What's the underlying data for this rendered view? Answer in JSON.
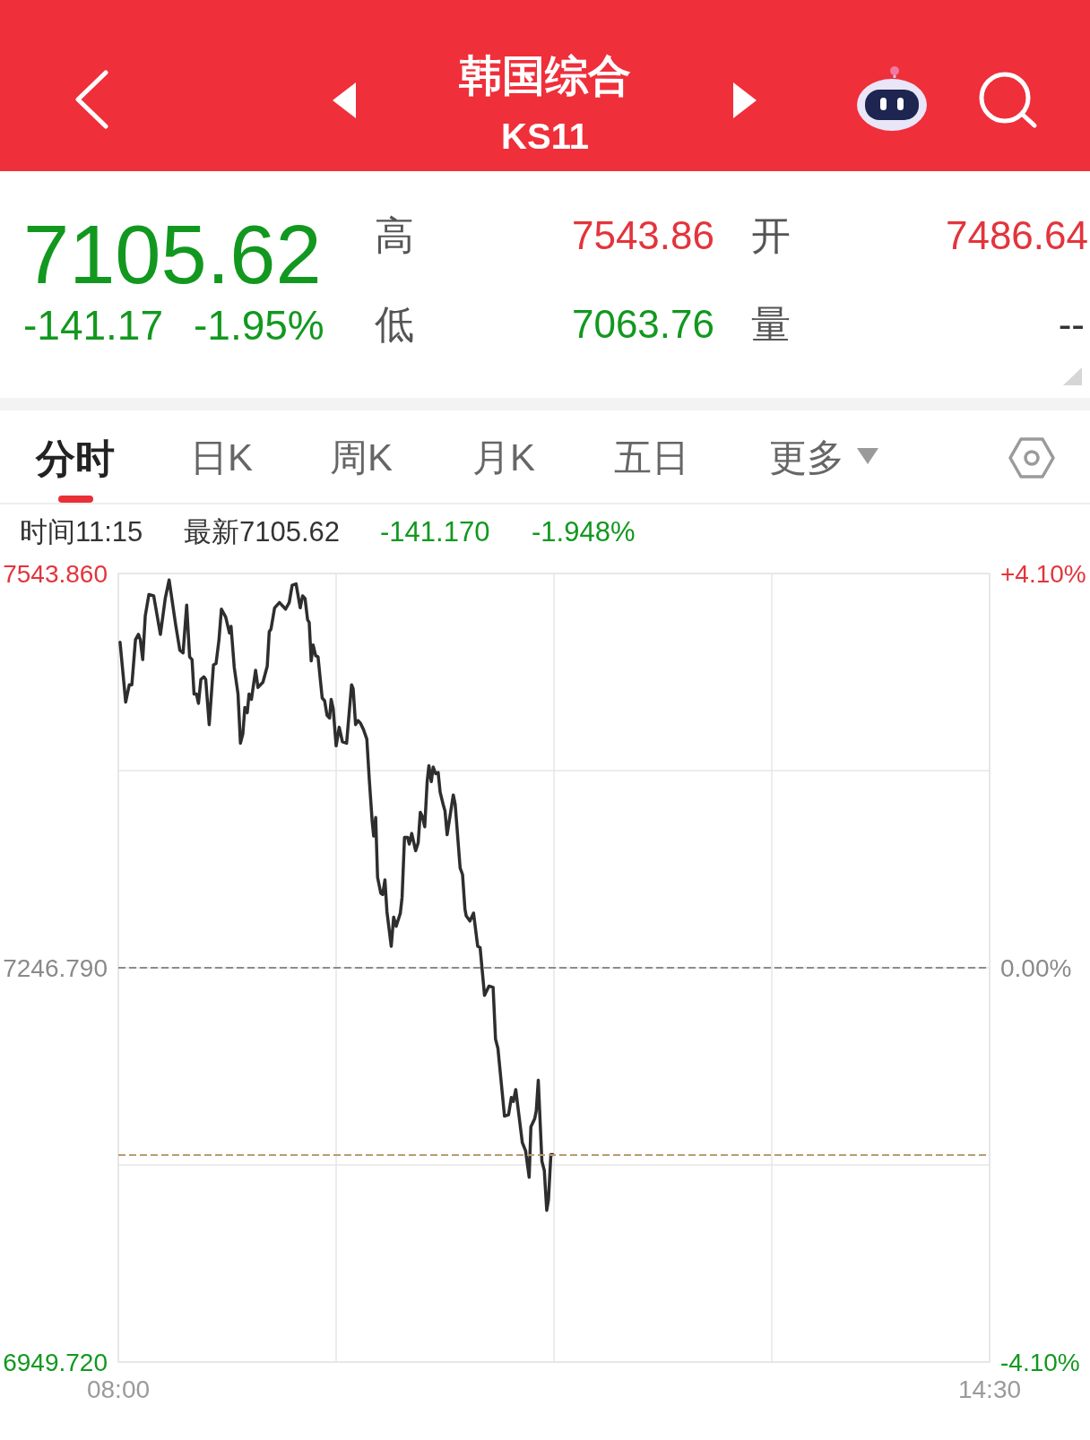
{
  "chart_data": {
    "type": "line",
    "title": "韩国综合",
    "subtitle": "KS11",
    "annotations": [
      "7105.62",
      "-141.17",
      "-1.95%",
      "高",
      "7543.86",
      "开",
      "7486.64",
      "低",
      "7063.76",
      "量",
      "--",
      "分时",
      "日K",
      "周K",
      "月K",
      "五日",
      "更多",
      "时间11:15",
      "最新7105.62",
      "-141.170",
      "-1.948%"
    ],
    "x": [
      8.013,
      8.055,
      8.082,
      8.101,
      8.128,
      8.15,
      8.164,
      8.182,
      8.201,
      8.228,
      8.264,
      8.314,
      8.35,
      8.379,
      8.428,
      8.459,
      8.483,
      8.51,
      8.532,
      8.55,
      8.565,
      8.583,
      8.598,
      8.616,
      8.638,
      8.652,
      8.678,
      8.71,
      8.729,
      8.751,
      8.769,
      8.801,
      8.829,
      8.841,
      8.865,
      8.893,
      8.911,
      8.929,
      8.944,
      8.962,
      8.975,
      8.993,
      9.024,
      9.042,
      9.079,
      9.111,
      9.126,
      9.139,
      9.166,
      9.202,
      9.248,
      9.275,
      9.297,
      9.326,
      9.357,
      9.375,
      9.393,
      9.412,
      9.424,
      9.439,
      9.453,
      9.472,
      9.49,
      9.521,
      9.539,
      9.557,
      9.576,
      9.588,
      9.603,
      9.625,
      9.648,
      9.672,
      9.703,
      9.74,
      9.752,
      9.77,
      9.789,
      9.807,
      9.83,
      9.854,
      9.872,
      9.894,
      9.905,
      9.92,
      9.934,
      9.958,
      9.972,
      9.989,
      10.004,
      10.036,
      10.054,
      10.073,
      10.104,
      10.117,
      10.135,
      10.158,
      10.171,
      10.189,
      10.218,
      10.237,
      10.253,
      10.267,
      10.286,
      10.304,
      10.317,
      10.335,
      10.349,
      10.368,
      10.386,
      10.401,
      10.423,
      10.437,
      10.453,
      10.499,
      10.513,
      10.55,
      10.568,
      10.586,
      10.595,
      10.623,
      10.65,
      10.681,
      10.699,
      10.732,
      10.765,
      10.796,
      10.814,
      10.832,
      10.881,
      10.911,
      10.932,
      10.947,
      10.965,
      11.014,
      11.038,
      11.065,
      11.078,
      11.106,
      11.118,
      11.133,
      11.16,
      11.178,
      11.196,
      11.209,
      11.227,
      11.242
    ],
    "values": [
      7492,
      7447,
      7460,
      7460,
      7494,
      7498,
      7494,
      7479,
      7512,
      7528,
      7527,
      7498,
      7525,
      7539,
      7505,
      7486,
      7484,
      7520,
      7481,
      7479,
      7453,
      7453,
      7446,
      7464,
      7466,
      7464,
      7430,
      7475,
      7476,
      7494,
      7517,
      7511,
      7499,
      7504,
      7473,
      7453,
      7416,
      7423,
      7443,
      7439,
      7453,
      7449,
      7471,
      7458,
      7462,
      7474,
      7500,
      7502,
      7518,
      7522,
      7517,
      7522,
      7535,
      7536,
      7518,
      7527,
      7525,
      7509,
      7507,
      7478,
      7490,
      7482,
      7481,
      7450,
      7448,
      7437,
      7435,
      7449,
      7442,
      7414,
      7428,
      7417,
      7416,
      7460,
      7457,
      7430,
      7433,
      7431,
      7426,
      7419,
      7389,
      7357,
      7346,
      7360,
      7315,
      7303,
      7302,
      7313,
      7289,
      7263,
      7285,
      7278,
      7288,
      7300,
      7345,
      7345,
      7340,
      7348,
      7335,
      7341,
      7364,
      7361,
      7353,
      7387,
      7399,
      7387,
      7398,
      7393,
      7394,
      7379,
      7370,
      7365,
      7347,
      7377,
      7370,
      7322,
      7317,
      7291,
      7286,
      7282,
      7288,
      7263,
      7262,
      7226,
      7233,
      7232,
      7193,
      7186,
      7135,
      7136,
      7149,
      7146,
      7155,
      7115,
      7109,
      7089,
      7127,
      7133,
      7139,
      7162,
      7101,
      7094,
      7064,
      7072,
      7106,
      7106
    ],
    "color": "#2e2e2e",
    "marker": "none",
    "line_style": "solid",
    "grid": true,
    "xlim": [
      8,
      14.5
    ],
    "xticks": [
      {
        "value": 8,
        "label": "08:00"
      },
      {
        "value": 9.625,
        "label": null
      },
      {
        "value": 11.25,
        "label": null
      },
      {
        "value": 12.875,
        "label": null
      },
      {
        "value": 14.5,
        "label": "14:30"
      }
    ],
    "ylim": [
      6949.72,
      7543.86
    ],
    "yticks": [
      {
        "value": 6949.72,
        "label": "6949.720"
      },
      {
        "value": 7098.255,
        "label": null
      },
      {
        "value": 7246.79,
        "label": "7246.790"
      },
      {
        "value": 7395.325,
        "label": null
      },
      {
        "value": 7543.86,
        "label": "7543.860"
      }
    ],
    "y2lim": [
      -4.1,
      4.1
    ],
    "y2ticks": [
      {
        "value": -4.1,
        "label": "-4.10%"
      },
      {
        "value": 0,
        "label": "0.00%"
      },
      {
        "value": 4.1,
        "label": "+4.10%"
      }
    ],
    "ref_lines": [
      {
        "axis": "y",
        "value": 7246.79,
        "color": "#8c8c8c",
        "line_style": "dashed"
      },
      {
        "axis": "y",
        "value": 7105.62,
        "color": "#b89c70",
        "line_style": "dashed"
      }
    ]
  }
}
